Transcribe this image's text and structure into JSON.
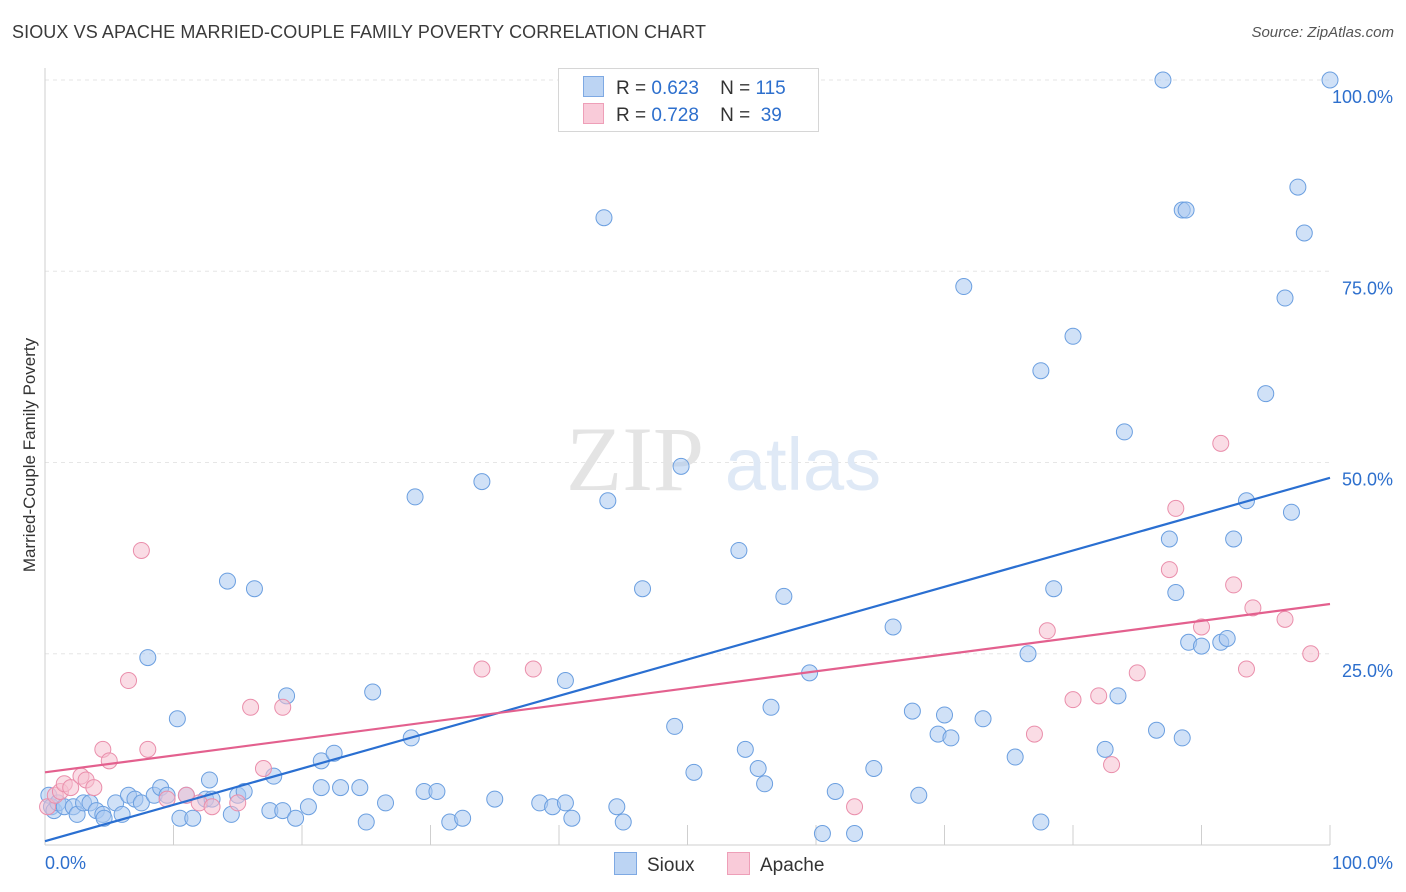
{
  "header": {
    "title": "SIOUX VS APACHE MARRIED-COUPLE FAMILY POVERTY CORRELATION CHART",
    "source": "Source: ZipAtlas.com"
  },
  "watermark": {
    "zip": "ZIP",
    "atlas": "atlas"
  },
  "legend": {
    "sioux": {
      "r_label": "R =",
      "r": "0.623",
      "n_label": "N =",
      "n": "115"
    },
    "apache": {
      "r_label": "R =",
      "r": "0.728",
      "n_label": "N =",
      "n": "39"
    }
  },
  "colors": {
    "sioux_fill": "#a9c9f0",
    "sioux_stroke": "#6b9fe0",
    "sioux_line": "#2a6fd1",
    "apache_fill": "#f6bfd0",
    "apache_stroke": "#ea8eab",
    "apache_line": "#e3608e",
    "label_blue": "#2d6fcd"
  },
  "chart_data": {
    "type": "scatter",
    "title": "SIOUX VS APACHE MARRIED-COUPLE FAMILY POVERTY CORRELATION CHART",
    "xlabel": "",
    "ylabel": "Married-Couple Family Poverty",
    "xlim": [
      0,
      100
    ],
    "ylim": [
      0,
      100
    ],
    "x_tick_labels": [
      "0.0%",
      "100.0%"
    ],
    "y_ticks": [
      {
        "value": 25,
        "label": "25.0%"
      },
      {
        "value": 50,
        "label": "50.0%"
      },
      {
        "value": 75,
        "label": "75.0%"
      },
      {
        "value": 100,
        "label": "100.0%"
      }
    ],
    "grid": true,
    "series": [
      {
        "name": "Sioux",
        "r": 0.623,
        "n": 115,
        "trend": {
          "x": [
            0,
            100
          ],
          "y": [
            0.5,
            48
          ]
        },
        "points": [
          [
            0.3,
            6.5
          ],
          [
            0.5,
            5.0
          ],
          [
            0.7,
            4.5
          ],
          [
            1.0,
            5.5
          ],
          [
            1.5,
            5.0
          ],
          [
            2.2,
            5.0
          ],
          [
            2.5,
            4.0
          ],
          [
            3.0,
            5.5
          ],
          [
            3.5,
            5.5
          ],
          [
            4.0,
            4.5
          ],
          [
            4.5,
            4.0
          ],
          [
            4.6,
            3.5
          ],
          [
            5.5,
            5.5
          ],
          [
            6.0,
            4.0
          ],
          [
            6.5,
            6.5
          ],
          [
            7.0,
            6.0
          ],
          [
            7.5,
            5.5
          ],
          [
            8.0,
            24.5
          ],
          [
            8.5,
            6.5
          ],
          [
            9.0,
            7.5
          ],
          [
            9.5,
            6.5
          ],
          [
            10.3,
            16.5
          ],
          [
            10.5,
            3.5
          ],
          [
            11.0,
            6.5
          ],
          [
            11.5,
            3.5
          ],
          [
            12.5,
            6.0
          ],
          [
            12.8,
            8.5
          ],
          [
            13.0,
            6.0
          ],
          [
            14.2,
            34.5
          ],
          [
            14.5,
            4.0
          ],
          [
            15.0,
            6.5
          ],
          [
            15.5,
            7.0
          ],
          [
            16.3,
            33.5
          ],
          [
            17.5,
            4.5
          ],
          [
            17.8,
            9.0
          ],
          [
            18.5,
            4.5
          ],
          [
            18.8,
            19.5
          ],
          [
            19.5,
            3.5
          ],
          [
            20.5,
            5.0
          ],
          [
            21.5,
            11.0
          ],
          [
            21.5,
            7.5
          ],
          [
            22.5,
            12.0
          ],
          [
            23.0,
            7.5
          ],
          [
            24.5,
            7.5
          ],
          [
            25.0,
            3.0
          ],
          [
            25.5,
            20.0
          ],
          [
            26.5,
            5.5
          ],
          [
            28.5,
            14.0
          ],
          [
            28.8,
            45.5
          ],
          [
            29.5,
            7.0
          ],
          [
            30.5,
            7.0
          ],
          [
            31.5,
            3.0
          ],
          [
            32.5,
            3.5
          ],
          [
            34.0,
            47.5
          ],
          [
            35.0,
            6.0
          ],
          [
            38.5,
            5.5
          ],
          [
            39.5,
            5.0
          ],
          [
            40.5,
            5.5
          ],
          [
            40.5,
            21.5
          ],
          [
            41.0,
            3.5
          ],
          [
            43.5,
            82.0
          ],
          [
            43.8,
            45.0
          ],
          [
            44.5,
            5.0
          ],
          [
            45.0,
            3.0
          ],
          [
            46.5,
            33.5
          ],
          [
            49.0,
            15.5
          ],
          [
            49.5,
            49.5
          ],
          [
            50.5,
            9.5
          ],
          [
            54.0,
            38.5
          ],
          [
            54.5,
            12.5
          ],
          [
            55.5,
            10.0
          ],
          [
            56.0,
            8.0
          ],
          [
            56.5,
            18.0
          ],
          [
            57.5,
            32.5
          ],
          [
            59.5,
            22.5
          ],
          [
            60.5,
            1.5
          ],
          [
            61.5,
            7.0
          ],
          [
            63.0,
            1.5
          ],
          [
            64.5,
            10.0
          ],
          [
            66.0,
            28.5
          ],
          [
            67.5,
            17.5
          ],
          [
            68.0,
            6.5
          ],
          [
            69.5,
            14.5
          ],
          [
            70.0,
            17.0
          ],
          [
            70.5,
            14.0
          ],
          [
            71.5,
            73.0
          ],
          [
            73.0,
            16.5
          ],
          [
            75.5,
            11.5
          ],
          [
            76.5,
            25.0
          ],
          [
            77.5,
            62.0
          ],
          [
            77.5,
            3.0
          ],
          [
            78.5,
            33.5
          ],
          [
            80.0,
            66.5
          ],
          [
            82.5,
            12.5
          ],
          [
            83.5,
            19.5
          ],
          [
            84.0,
            54.0
          ],
          [
            86.5,
            15.0
          ],
          [
            87.5,
            40.0
          ],
          [
            88.0,
            33.0
          ],
          [
            88.5,
            14.0
          ],
          [
            88.5,
            83.0
          ],
          [
            88.8,
            83.0
          ],
          [
            89.0,
            26.5
          ],
          [
            90.0,
            26.0
          ],
          [
            91.5,
            26.5
          ],
          [
            92.5,
            40.0
          ],
          [
            93.5,
            45.0
          ],
          [
            95.0,
            59.0
          ],
          [
            96.5,
            71.5
          ],
          [
            97.0,
            43.5
          ],
          [
            97.5,
            86.0
          ],
          [
            98.0,
            80.0
          ],
          [
            100.0,
            100.0
          ],
          [
            87.0,
            100.0
          ],
          [
            92.0,
            27.0
          ]
        ]
      },
      {
        "name": "Apache",
        "r": 0.728,
        "n": 39,
        "trend": {
          "x": [
            0,
            100
          ],
          "y": [
            9.5,
            31.5
          ]
        },
        "points": [
          [
            0.2,
            5.0
          ],
          [
            0.8,
            6.5
          ],
          [
            1.2,
            7.0
          ],
          [
            1.5,
            8.0
          ],
          [
            2.0,
            7.5
          ],
          [
            2.8,
            9.0
          ],
          [
            3.2,
            8.5
          ],
          [
            3.8,
            7.5
          ],
          [
            4.5,
            12.5
          ],
          [
            5.0,
            11.0
          ],
          [
            6.5,
            21.5
          ],
          [
            7.5,
            38.5
          ],
          [
            8.0,
            12.5
          ],
          [
            9.5,
            6.0
          ],
          [
            11.0,
            6.5
          ],
          [
            12.0,
            5.5
          ],
          [
            13.0,
            5.0
          ],
          [
            15.0,
            5.5
          ],
          [
            16.0,
            18.0
          ],
          [
            17.0,
            10.0
          ],
          [
            18.5,
            18.0
          ],
          [
            34.0,
            23.0
          ],
          [
            38.0,
            23.0
          ],
          [
            63.0,
            5.0
          ],
          [
            78.0,
            28.0
          ],
          [
            80.0,
            19.0
          ],
          [
            82.0,
            19.5
          ],
          [
            83.0,
            10.5
          ],
          [
            85.0,
            22.5
          ],
          [
            87.5,
            36.0
          ],
          [
            88.0,
            44.0
          ],
          [
            91.5,
            52.5
          ],
          [
            92.5,
            34.0
          ],
          [
            93.5,
            23.0
          ],
          [
            94.0,
            31.0
          ],
          [
            96.5,
            29.5
          ],
          [
            98.5,
            25.0
          ],
          [
            90.0,
            28.5
          ],
          [
            77.0,
            14.5
          ]
        ]
      }
    ]
  },
  "bottom_legend": {
    "sioux": "Sioux",
    "apache": "Apache"
  }
}
